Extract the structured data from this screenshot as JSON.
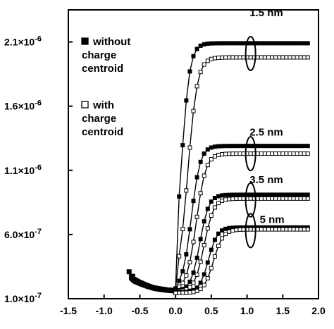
{
  "chart_data": {
    "type": "line",
    "title": "",
    "xlabel": "",
    "ylabel": "",
    "xlim": [
      -1.5,
      2.0
    ],
    "ylim": [
      1e-07,
      2.35e-06
    ],
    "x_ticks": [
      -1.5,
      -1.0,
      -0.5,
      0.0,
      0.5,
      1.0,
      1.5,
      2.0
    ],
    "x_tick_labels": [
      "-1.5",
      "-1.0",
      "-0.5",
      "0.0",
      "0.5",
      "1.0",
      "1.5",
      "2.0"
    ],
    "y_ticks": [
      1e-07,
      6e-07,
      1.1e-06,
      1.6e-06,
      2.1e-06
    ],
    "y_tick_labels": [
      {
        "mantissa": "1.0×10",
        "exp": "-7"
      },
      {
        "mantissa": "6.0×10",
        "exp": "-7"
      },
      {
        "mantissa": "1.1×10",
        "exp": "-6"
      },
      {
        "mantissa": "1.6×10",
        "exp": "-6"
      },
      {
        "mantissa": "2.1×10",
        "exp": "-6"
      }
    ],
    "grid": false,
    "legend": {
      "position": "top-left",
      "entries": [
        {
          "marker": "filled-square",
          "lines": [
            "without",
            "charge",
            "centroid"
          ]
        },
        {
          "marker": "open-square",
          "lines": [
            "with",
            "charge",
            "centroid"
          ]
        }
      ]
    },
    "annotations": [
      {
        "text": "1.5 nm",
        "x": 1.27,
        "y": 2.3e-06,
        "ellipse_x": 1.05,
        "ellipse_y": 2.01e-06
      },
      {
        "text": "2.5 nm",
        "x": 1.27,
        "y": 1.37e-06,
        "ellipse_x": 1.05,
        "ellipse_y": 1.23e-06
      },
      {
        "text": "3.5 nm",
        "x": 1.27,
        "y": 1e-06,
        "ellipse_x": 1.05,
        "ellipse_y": 8.7e-07
      },
      {
        "text": "5 nm",
        "x": 1.35,
        "y": 6.9e-07,
        "ellipse_x": 1.05,
        "ellipse_y": 6.3e-07
      }
    ],
    "series": [
      {
        "name": "1.5 nm without charge centroid",
        "marker": "filled",
        "x0": 0.08,
        "k": 17,
        "ymin": 1.8e-07,
        "ymax": 2.09e-06
      },
      {
        "name": "1.5 nm with charge centroid",
        "marker": "open",
        "x0": 0.17,
        "k": 15,
        "ymin": 1.75e-07,
        "ymax": 1.98e-06
      },
      {
        "name": "2.5 nm without charge centroid",
        "marker": "filled",
        "x0": 0.22,
        "k": 16,
        "ymin": 1.7e-07,
        "ymax": 1.29e-06
      },
      {
        "name": "2.5 nm with charge centroid",
        "marker": "open",
        "x0": 0.29,
        "k": 15,
        "ymin": 1.65e-07,
        "ymax": 1.23e-06
      },
      {
        "name": "3.5 nm without charge centroid",
        "marker": "filled",
        "x0": 0.34,
        "k": 16,
        "ymin": 1.6e-07,
        "ymax": 9.1e-07
      },
      {
        "name": "3.5 nm with charge centroid",
        "marker": "open",
        "x0": 0.4,
        "k": 15,
        "ymin": 1.55e-07,
        "ymax": 8.8e-07
      },
      {
        "name": "5 nm without charge centroid",
        "marker": "filled",
        "x0": 0.46,
        "k": 16,
        "ymin": 1.5e-07,
        "ymax": 6.55e-07
      },
      {
        "name": "5 nm with charge centroid",
        "marker": "open",
        "x0": 0.53,
        "k": 15,
        "ymin": 1.45e-07,
        "ymax": 6.4e-07
      }
    ],
    "common_left": {
      "x": [
        -0.65,
        -0.6,
        -0.5,
        -0.4,
        -0.3,
        -0.2,
        -0.1,
        0.0
      ],
      "y": [
        3.1e-07,
        2.75e-07,
        2.45e-07,
        2.2e-07,
        2e-07,
        1.9e-07,
        1.82e-07,
        1.78e-07
      ]
    }
  }
}
